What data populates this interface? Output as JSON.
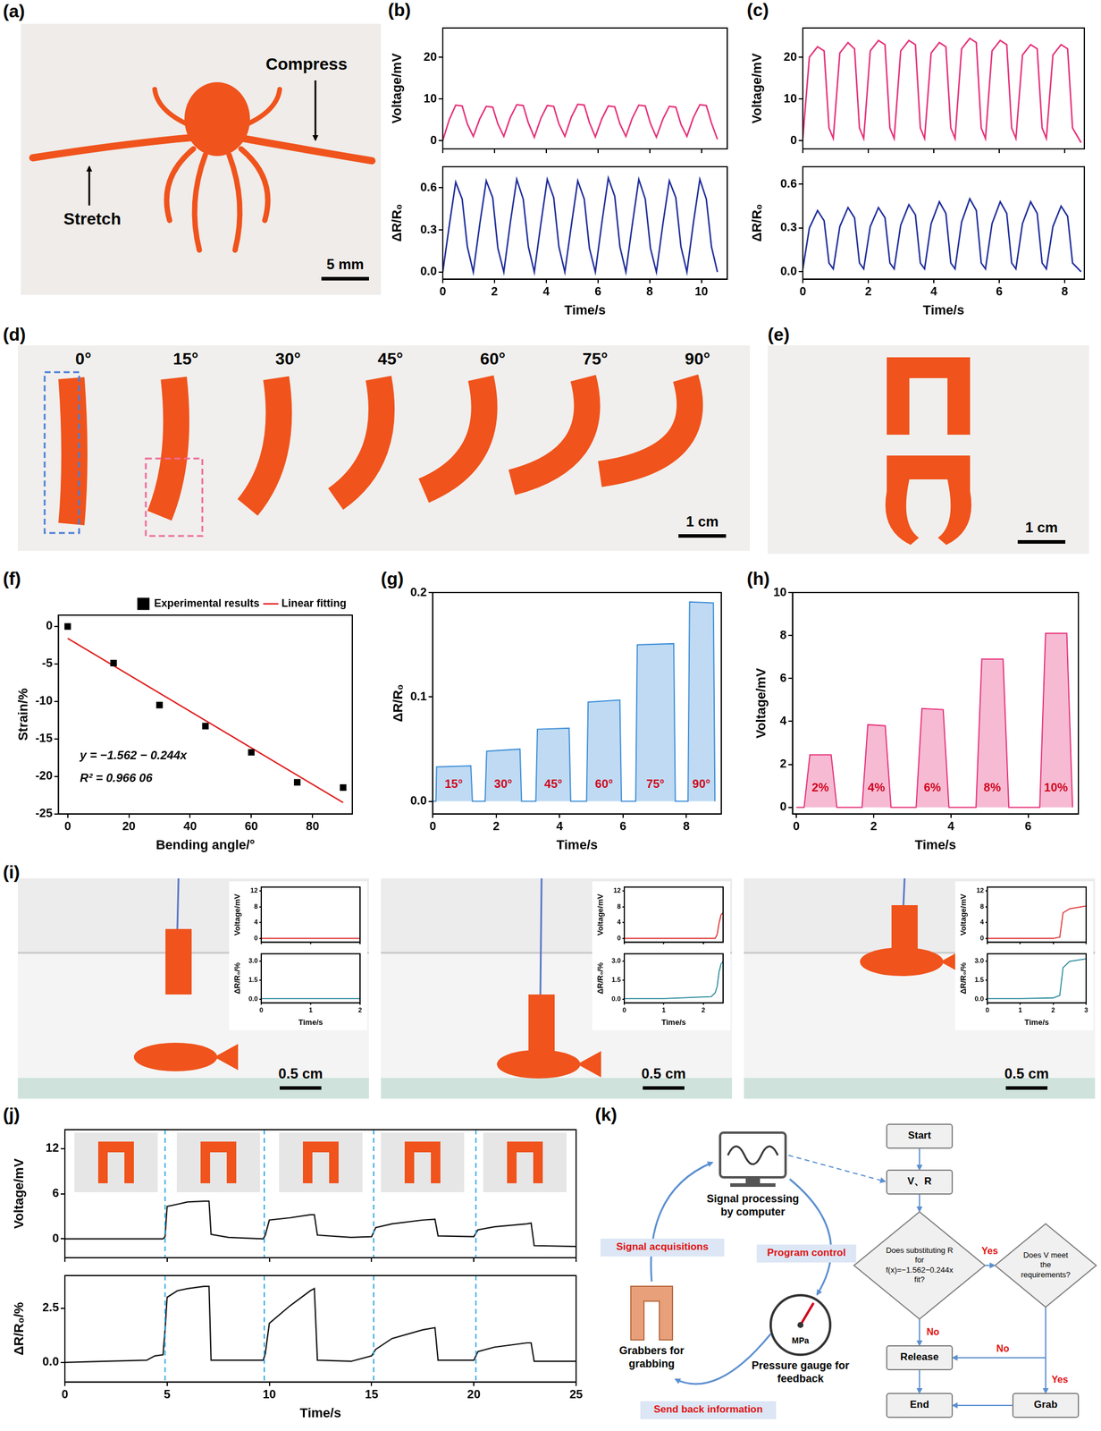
{
  "chart_data": [
    {
      "panel": "(b)",
      "type": "line",
      "x_label": "Time/s",
      "x": [
        0,
        0.25,
        0.5,
        0.75,
        0.95,
        1.18,
        1.43,
        1.68,
        1.93,
        2.13,
        2.36,
        2.61,
        2.86,
        3.11,
        3.31,
        3.54,
        3.79,
        4.04,
        4.29,
        4.49,
        4.72,
        4.97,
        5.22,
        5.47,
        5.67,
        5.9,
        6.15,
        6.4,
        6.65,
        6.85,
        7.08,
        7.33,
        7.58,
        7.83,
        8.03,
        8.26,
        8.51,
        8.76,
        9.01,
        9.21,
        9.44,
        9.69,
        9.94,
        10.19,
        10.39,
        10.62
      ],
      "xlim": [
        0,
        11
      ],
      "xticks": [
        0,
        2,
        4,
        6,
        8,
        10
      ],
      "subplots": [
        {
          "y_label": "Voltage/mV",
          "color": "#e5317a",
          "ylim": [
            -2,
            27
          ],
          "yticks": [
            0,
            10,
            20
          ],
          "values": [
            0,
            5,
            8.5,
            8.3,
            4,
            1,
            5.2,
            8.2,
            8.0,
            4,
            1,
            5.5,
            8.6,
            8.4,
            4.2,
            0.8,
            5.3,
            8.4,
            8.2,
            4,
            1,
            5.6,
            8.7,
            8.5,
            4.3,
            0.9,
            5.2,
            8.3,
            8.1,
            4,
            1,
            5.4,
            8.5,
            8.3,
            4.1,
            0.8,
            5.1,
            8.2,
            8,
            3.9,
            1,
            5.5,
            8.6,
            8.4,
            4.2,
            0.3
          ]
        },
        {
          "y_label": "ΔR/R₀",
          "color": "#1f2d9a",
          "ylim": [
            -0.05,
            0.75
          ],
          "yticks": [
            {
              "value": 0,
              "label": "0.0"
            },
            0.3,
            0.6
          ],
          "values": [
            0,
            0.33,
            0.64,
            0.52,
            0.18,
            0,
            0.34,
            0.65,
            0.53,
            0.17,
            0,
            0.35,
            0.66,
            0.52,
            0.18,
            0,
            0.34,
            0.66,
            0.53,
            0.18,
            0,
            0.33,
            0.65,
            0.52,
            0.17,
            0,
            0.35,
            0.67,
            0.54,
            0.18,
            0,
            0.34,
            0.66,
            0.52,
            0.17,
            0,
            0.34,
            0.65,
            0.53,
            0.18,
            0,
            0.35,
            0.66,
            0.52,
            0.18,
            0
          ]
        }
      ]
    },
    {
      "panel": "(c)",
      "type": "line",
      "x_label": "Time/s",
      "x": [
        0,
        0.2,
        0.45,
        0.65,
        0.8,
        0.93,
        1.13,
        1.38,
        1.58,
        1.73,
        1.86,
        2.06,
        2.31,
        2.51,
        2.66,
        2.79,
        2.99,
        3.24,
        3.44,
        3.59,
        3.72,
        3.92,
        4.17,
        4.37,
        4.52,
        4.65,
        4.85,
        5.1,
        5.3,
        5.45,
        5.58,
        5.78,
        6.03,
        6.23,
        6.38,
        6.51,
        6.71,
        6.96,
        7.16,
        7.31,
        7.44,
        7.64,
        7.89,
        8.09,
        8.24,
        8.5
      ],
      "xlim": [
        0,
        8.6
      ],
      "xticks": [
        0,
        2,
        4,
        6,
        8
      ],
      "subplots": [
        {
          "y_label": "Voltage/mV",
          "color": "#e5317a",
          "ylim": [
            -2,
            27
          ],
          "yticks": [
            0,
            10,
            20
          ],
          "values": [
            0.5,
            20,
            22.5,
            21.5,
            3,
            0.5,
            21,
            23.5,
            22,
            3,
            0.5,
            21.5,
            24,
            23,
            3,
            0.5,
            21.5,
            24,
            23,
            3,
            0.5,
            21,
            23.5,
            22.5,
            3,
            0.5,
            22,
            24.5,
            23.5,
            3,
            0.5,
            21.5,
            24,
            23,
            3,
            0.5,
            20.5,
            23,
            22,
            3,
            0.5,
            20.5,
            23,
            22,
            3,
            -0.5
          ]
        },
        {
          "y_label": "ΔR/R₀",
          "color": "#1f2d9a",
          "ylim": [
            -0.05,
            0.72
          ],
          "yticks": [
            {
              "value": 0,
              "label": "0.0"
            },
            0.3,
            0.6
          ],
          "values": [
            0.02,
            0.3,
            0.42,
            0.35,
            0.06,
            0.02,
            0.31,
            0.44,
            0.37,
            0.06,
            0.02,
            0.31,
            0.44,
            0.37,
            0.06,
            0.02,
            0.32,
            0.46,
            0.39,
            0.06,
            0.02,
            0.33,
            0.48,
            0.4,
            0.06,
            0.02,
            0.34,
            0.5,
            0.42,
            0.06,
            0.02,
            0.33,
            0.48,
            0.4,
            0.06,
            0.02,
            0.33,
            0.48,
            0.4,
            0.06,
            0.02,
            0.31,
            0.45,
            0.38,
            0.06,
            0
          ]
        }
      ]
    },
    {
      "panel": "(f)",
      "type": "scatter",
      "x_label": "Bending angle/°",
      "y_label": "Strain/%",
      "xlim": [
        -3,
        93
      ],
      "xticks": [
        0,
        20,
        40,
        60,
        80
      ],
      "ylim": [
        -25,
        1.5
      ],
      "yticks": [
        -25,
        -20,
        -15,
        -10,
        -5,
        0
      ],
      "legend": "top right",
      "series": [
        {
          "name": "Experimental results",
          "type": "scatter",
          "marker": "square",
          "color": "#000000",
          "x": [
            0,
            15,
            30,
            45,
            60,
            75,
            90
          ],
          "values": [
            0,
            -4.9,
            -10.5,
            -13.3,
            -16.8,
            -20.8,
            -21.5
          ]
        },
        {
          "name": "Linear fitting",
          "type": "line",
          "line_style": "solid",
          "color": "#e02020",
          "x": [
            0,
            90
          ],
          "values": [
            -1.6,
            -23.5
          ]
        }
      ],
      "annotations": [
        {
          "text": "y = −1.562 − 0.244x",
          "x": 4,
          "y": -17.3
        },
        {
          "text": "R² = 0.966 06",
          "x": 4,
          "y": -20.3
        }
      ]
    },
    {
      "panel": "(g)",
      "type": "area",
      "x_label": "Time/s",
      "y_label": "ΔR/R₀",
      "color": "#3f8fd8",
      "x": [
        0,
        0.1,
        0.12,
        1.2,
        1.25,
        1.65,
        1.7,
        2.75,
        2.8,
        3.25,
        3.3,
        4.3,
        4.35,
        4.85,
        4.9,
        5.9,
        5.95,
        6.4,
        6.45,
        7.6,
        7.65,
        8.05,
        8.1,
        8.85,
        8.9
      ],
      "values": [
        0,
        0,
        0.033,
        0.034,
        0,
        0,
        0.048,
        0.05,
        0,
        0,
        0.069,
        0.07,
        0,
        0,
        0.095,
        0.097,
        0,
        0,
        0.15,
        0.151,
        0,
        0,
        0.191,
        0.19,
        0
      ],
      "xlim": [
        0,
        9.1
      ],
      "xticks": [
        0,
        2,
        4,
        6,
        8
      ],
      "ylim": [
        -0.012,
        0.2
      ],
      "yticks": [
        {
          "value": 0,
          "label": "0.0"
        },
        0.1,
        0.2
      ],
      "annotations": [
        {
          "text": "15°",
          "x": 0.66,
          "y": 0.016
        },
        {
          "text": "30°",
          "x": 2.22,
          "y": 0.016
        },
        {
          "text": "45°",
          "x": 3.8,
          "y": 0.016
        },
        {
          "text": "60°",
          "x": 5.4,
          "y": 0.016
        },
        {
          "text": "75°",
          "x": 7.02,
          "y": 0.016
        },
        {
          "text": "90°",
          "x": 8.47,
          "y": 0.016
        }
      ]
    },
    {
      "panel": "(h)",
      "type": "area",
      "x_label": "Time/s",
      "y_label": "Voltage/mV",
      "color": "#e5317a",
      "x": [
        0,
        0.2,
        0.35,
        0.9,
        1.05,
        1.7,
        1.85,
        2.3,
        2.45,
        3.1,
        3.25,
        3.8,
        3.95,
        4.65,
        4.8,
        5.35,
        5.5,
        6.3,
        6.45,
        7.0,
        7.15
      ],
      "values": [
        0,
        0,
        2.45,
        2.45,
        0,
        0,
        3.85,
        3.8,
        0,
        0,
        4.6,
        4.55,
        0,
        0,
        6.9,
        6.9,
        0,
        0,
        8.1,
        8.1,
        0
      ],
      "xlim": [
        -0.1,
        7.3
      ],
      "xticks": [
        0,
        2,
        4,
        6
      ],
      "ylim": [
        -0.3,
        10
      ],
      "yticks": [
        0,
        2,
        4,
        6,
        8,
        10
      ],
      "annotations": [
        {
          "text": "2%",
          "x": 0.62,
          "y": 0.9
        },
        {
          "text": "4%",
          "x": 2.07,
          "y": 0.9
        },
        {
          "text": "6%",
          "x": 3.52,
          "y": 0.9
        },
        {
          "text": "8%",
          "x": 5.07,
          "y": 0.9
        },
        {
          "text": "10%",
          "x": 6.72,
          "y": 0.9
        }
      ]
    },
    {
      "panel": "(i)",
      "type": "line",
      "x_label": "Time/s",
      "x": [
        0,
        1,
        2
      ],
      "xlim": [
        0,
        2
      ],
      "xticks": [
        0,
        1,
        2
      ],
      "subplots": [
        {
          "y_label": "Voltage/mV",
          "color": "#e03030",
          "ylim": [
            -1,
            13
          ],
          "yticks": [
            0,
            4,
            8,
            12
          ],
          "values": [
            0,
            0,
            0
          ]
        },
        {
          "y_label": "ΔR/R₀/%",
          "color": "#2a8a9a",
          "ylim": [
            -0.3,
            3.6
          ],
          "yticks": [
            {
              "value": 0,
              "label": "0.0"
            },
            1.5,
            {
              "value": 3,
              "label": "3.0"
            }
          ],
          "values": [
            0.05,
            0.05,
            0.05
          ]
        }
      ]
    },
    {
      "panel": "(i)",
      "type": "line",
      "x_label": "Time/s",
      "x": [
        0,
        1,
        2.2,
        2.3,
        2.35,
        2.4,
        2.45,
        2.5
      ],
      "xlim": [
        0,
        2.5
      ],
      "xticks": [
        0,
        1,
        2
      ],
      "subplots": [
        {
          "y_label": "Voltage/mV",
          "color": "#e03030",
          "ylim": [
            -1,
            13
          ],
          "yticks": [
            0,
            4,
            8,
            12
          ],
          "values": [
            0,
            0,
            0,
            0,
            1,
            4,
            6,
            6.5
          ]
        },
        {
          "y_label": "ΔR/R₀/%",
          "color": "#2a8a9a",
          "ylim": [
            -0.3,
            3.6
          ],
          "yticks": [
            {
              "value": 0,
              "label": "0.0"
            },
            1.5,
            {
              "value": 3,
              "label": "3.0"
            }
          ],
          "values": [
            0.05,
            0.05,
            0.2,
            0.5,
            1.0,
            2.2,
            2.8,
            3.0
          ]
        }
      ]
    },
    {
      "panel": "(i)",
      "type": "line",
      "x_label": "Time/s",
      "x": [
        0,
        1,
        2,
        2.2,
        2.3,
        2.5,
        3
      ],
      "xlim": [
        0,
        3
      ],
      "xticks": [
        0,
        1,
        2,
        3
      ],
      "subplots": [
        {
          "y_label": "Voltage/mV",
          "color": "#e03030",
          "ylim": [
            -1,
            13
          ],
          "yticks": [
            0,
            4,
            8,
            12
          ],
          "values": [
            0,
            0,
            0,
            0.3,
            6.5,
            7.5,
            8.2
          ]
        },
        {
          "y_label": "ΔR/R₀/%",
          "color": "#2a8a9a",
          "ylim": [
            -0.3,
            3.6
          ],
          "yticks": [
            {
              "value": 0,
              "label": "0.0"
            },
            1.5,
            {
              "value": 3,
              "label": "3.0"
            }
          ],
          "values": [
            0.05,
            0.05,
            0.1,
            0.3,
            2.5,
            3.0,
            3.2
          ]
        }
      ]
    },
    {
      "panel": "(j)",
      "type": "line",
      "x_label": "Time/s",
      "x": [
        0,
        2,
        4,
        4.4,
        4.8,
        4.9,
        5,
        5.5,
        6,
        6.8,
        7.05,
        7.15,
        8,
        9.7,
        9.8,
        10,
        11,
        12,
        12.2,
        12.35,
        14,
        15,
        15.2,
        16,
        17.5,
        18.1,
        18.25,
        20,
        20.2,
        21,
        22.6,
        22.8,
        22.95,
        25
      ],
      "xlim": [
        0,
        25
      ],
      "xticks": [
        0,
        5,
        10,
        15,
        20,
        25
      ],
      "dividers": [
        4.9,
        9.75,
        15.1,
        20.1
      ],
      "subplots": [
        {
          "y_label": "Voltage/mV",
          "color": "#111111",
          "ylim": [
            -2.5,
            14.5
          ],
          "yticks": [
            0,
            6,
            12
          ],
          "values": [
            0,
            0,
            0,
            0,
            0,
            0.3,
            4.3,
            4.6,
            4.9,
            5,
            5,
            0.6,
            0.2,
            0,
            0.5,
            2.5,
            2.8,
            3.2,
            3.2,
            0.5,
            0.2,
            0.3,
            1.5,
            2,
            2.5,
            2.6,
            0.4,
            0.3,
            1.2,
            1.6,
            2,
            2.1,
            -0.9,
            -1
          ]
        },
        {
          "y_label": "ΔR/R₀/%",
          "color": "#111111",
          "ylim": [
            -0.9,
            4.0
          ],
          "yticks": [
            {
              "value": 0,
              "label": "0.0"
            },
            2.5
          ],
          "values": [
            0,
            0.05,
            0.1,
            0.3,
            0.35,
            1.5,
            3,
            3.3,
            3.4,
            3.5,
            3.5,
            0.1,
            0.1,
            0.1,
            0.4,
            1.8,
            2.6,
            3.3,
            3.4,
            0.1,
            0.05,
            0.3,
            0.6,
            1.1,
            1.5,
            1.6,
            0.1,
            0.1,
            0.5,
            0.7,
            0.9,
            0.9,
            0.05,
            0.05
          ]
        }
      ]
    }
  ],
  "photos": [
    {
      "panel": "(a)",
      "texts": [
        "Stretch",
        "Compress"
      ],
      "scale_bar": "5 mm"
    },
    {
      "panel": "(d)",
      "angles": [
        "0°",
        "15°",
        "30°",
        "45°",
        "60°",
        "75°",
        "90°"
      ],
      "scale_bar": "1 cm"
    },
    {
      "panel": "(e)",
      "scale_bar": "1 cm"
    },
    {
      "panel": "(i)",
      "scale_bars": [
        "0.5 cm",
        "0.5 cm",
        "0.5 cm"
      ]
    }
  ],
  "diagram": {
    "panel": "(k)",
    "cycle": {
      "computer": "Signal processing by computer",
      "program": "Program control",
      "gauge": "Pressure gauge for feedback",
      "gauge_unit": "MPa",
      "send": "Send back information",
      "grabber": "Grabbers for grabbing",
      "acquire": "Signal acquisitions"
    },
    "flow": {
      "start": "Start",
      "input": "V、R",
      "decision1": "Does substituting R for f(x)=−1.562−0.244x fit?",
      "decision2": "Does V meet the requirements?",
      "release": "Release",
      "grab": "Grab",
      "end": "End",
      "yes": "Yes",
      "no": "No"
    }
  }
}
